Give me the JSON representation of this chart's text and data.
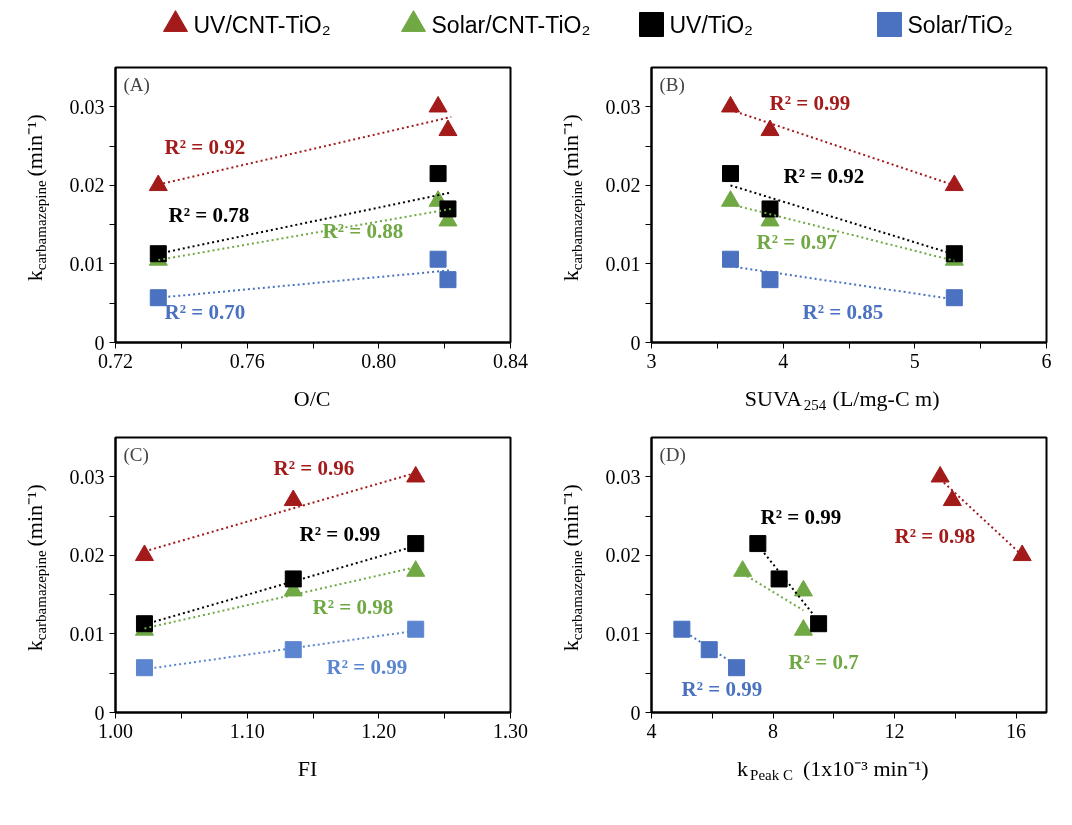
{
  "chart_data": [
    {
      "type": "scatter",
      "title": "(A)",
      "xlabel": "O/C",
      "ylabel": "k$_{carbamazepine}$ (min⁻¹)",
      "legend": "top",
      "grid": false,
      "xlim": [
        0.72,
        0.84
      ],
      "xticks": [
        0.72,
        {
          "value": 0.74,
          "label": null
        },
        0.76,
        {
          "value": 0.78,
          "label": null
        },
        {
          "value": 0.8,
          "label": "0.80"
        },
        {
          "value": 0.82,
          "label": null
        },
        0.84
      ],
      "ylim": [
        0,
        0.035
      ],
      "yticks": [
        0,
        {
          "value": 0.005,
          "label": null
        },
        0.01,
        {
          "value": 0.015,
          "label": null
        },
        0.02,
        {
          "value": 0.025,
          "label": null
        },
        0.03
      ],
      "x": [
        0.818,
        0.821,
        0.733
      ],
      "series": [
        {
          "name": "UV/CNT-TiO₂",
          "type": "scatter",
          "marker": "triangle",
          "color": "#a31a1a",
          "values": [
            0.03,
            0.027,
            0.02
          ]
        },
        {
          "name": "Solar/CNT-TiO₂",
          "type": "scatter",
          "marker": "triangle",
          "color": "#70a844",
          "values": [
            0.018,
            0.0155,
            0.0105
          ]
        },
        {
          "name": "UV/TiO₂",
          "type": "scatter",
          "marker": "square",
          "color": "#000000",
          "values": [
            0.0215,
            0.017,
            0.0113
          ]
        },
        {
          "name": "Solar/TiO₂",
          "type": "scatter",
          "marker": "square",
          "color": "#4a72c0",
          "values": [
            0.0106,
            0.008,
            0.0057
          ]
        },
        {
          "type": "line",
          "line_style": "dotted",
          "marker": "none",
          "color": "#a31a1a",
          "x": [
            0.733,
            0.822
          ],
          "values": [
            0.0201,
            0.0287
          ]
        },
        {
          "type": "line",
          "line_style": "dotted",
          "marker": "none",
          "color": "#70a844",
          "x": [
            0.733,
            0.822
          ],
          "values": [
            0.0105,
            0.017
          ]
        },
        {
          "type": "line",
          "line_style": "dotted",
          "marker": "none",
          "color": "#000000",
          "x": [
            0.733,
            0.822
          ],
          "values": [
            0.0113,
            0.0191
          ]
        },
        {
          "type": "line",
          "line_style": "dotted",
          "marker": "none",
          "color": "#4a72c0",
          "x": [
            0.733,
            0.822
          ],
          "values": [
            0.0057,
            0.0092
          ]
        }
      ],
      "annotations": [
        "R² = 0.92",
        "R² = 0.88",
        "R² = 0.78",
        "R² = 0.70"
      ]
    },
    {
      "type": "scatter",
      "title": "(B)",
      "xlabel": "SUVA$_{254}$ (L/mg-C m)",
      "ylabel": "k$_{carbamazepine}$ (min⁻¹)",
      "grid": false,
      "xlim": [
        3,
        6
      ],
      "xticks": [
        3,
        {
          "value": 3.5,
          "label": null
        },
        4,
        {
          "value": 4.5,
          "label": null
        },
        5,
        {
          "value": 5.5,
          "label": null
        },
        6
      ],
      "ylim": [
        0,
        0.035
      ],
      "yticks": [
        0,
        {
          "value": 0.005,
          "label": null
        },
        0.01,
        {
          "value": 0.015,
          "label": null
        },
        0.02,
        {
          "value": 0.025,
          "label": null
        },
        0.03
      ],
      "x": [
        3.6,
        3.9,
        5.3
      ],
      "series": [
        {
          "type": "scatter",
          "marker": "triangle",
          "color": "#a31a1a",
          "values": [
            0.03,
            0.027,
            0.02
          ]
        },
        {
          "type": "scatter",
          "marker": "triangle",
          "color": "#70a844",
          "values": [
            0.018,
            0.0155,
            0.0105
          ]
        },
        {
          "type": "scatter",
          "marker": "square",
          "color": "#000000",
          "values": [
            0.0215,
            0.017,
            0.0113
          ]
        },
        {
          "type": "scatter",
          "marker": "square",
          "color": "#4a72c0",
          "values": [
            0.0106,
            0.008,
            0.0057
          ]
        },
        {
          "type": "line",
          "line_style": "dotted",
          "marker": "none",
          "color": "#a31a1a",
          "x": [
            3.6,
            5.3
          ],
          "values": [
            0.0296,
            0.02
          ]
        },
        {
          "type": "line",
          "line_style": "dotted",
          "marker": "none",
          "color": "#70a844",
          "x": [
            3.6,
            5.3
          ],
          "values": [
            0.0176,
            0.0104
          ]
        },
        {
          "type": "line",
          "line_style": "dotted",
          "marker": "none",
          "color": "#000000",
          "x": [
            3.6,
            5.3
          ],
          "values": [
            0.02,
            0.0112
          ]
        },
        {
          "type": "line",
          "line_style": "dotted",
          "marker": "none",
          "color": "#4a72c0",
          "x": [
            3.6,
            5.3
          ],
          "values": [
            0.0097,
            0.0055
          ]
        }
      ],
      "annotations": [
        "R² = 0.99",
        "R² = 0.97",
        "R² = 0.92",
        "R² = 0.85"
      ]
    },
    {
      "type": "scatter",
      "title": "(C)",
      "xlabel": "FI",
      "ylabel": "k$_{carbamazepine}$ (min⁻¹)",
      "grid": false,
      "xlim": [
        1.0,
        1.3
      ],
      "xticks": [
        {
          "value": 1.0,
          "label": "1.00"
        },
        {
          "value": 1.05,
          "label": null
        },
        {
          "value": 1.1,
          "label": "1.10"
        },
        {
          "value": 1.15,
          "label": null
        },
        {
          "value": 1.2,
          "label": "1.20"
        },
        {
          "value": 1.25,
          "label": null
        },
        {
          "value": 1.3,
          "label": "1.30"
        }
      ],
      "ylim": [
        0,
        0.035
      ],
      "yticks": [
        0,
        {
          "value": 0.005,
          "label": null
        },
        0.01,
        {
          "value": 0.015,
          "label": null
        },
        0.02,
        {
          "value": 0.025,
          "label": null
        },
        0.03
      ],
      "x": [
        1.228,
        1.135,
        1.022
      ],
      "series": [
        {
          "type": "scatter",
          "marker": "triangle",
          "color": "#a31a1a",
          "values": [
            0.03,
            0.027,
            0.02
          ]
        },
        {
          "type": "scatter",
          "marker": "triangle",
          "color": "#70a844",
          "values": [
            0.018,
            0.0155,
            0.0105
          ]
        },
        {
          "type": "scatter",
          "marker": "square",
          "color": "#000000",
          "values": [
            0.0215,
            0.017,
            0.0113
          ]
        },
        {
          "type": "scatter",
          "marker": "square",
          "color": "#5b85d0",
          "values": [
            0.0106,
            0.008,
            0.0057
          ]
        },
        {
          "type": "line",
          "line_style": "dotted",
          "marker": "none",
          "color": "#a31a1a",
          "x": [
            1.022,
            1.228
          ],
          "values": [
            0.0205,
            0.0305
          ]
        },
        {
          "type": "line",
          "line_style": "dotted",
          "marker": "none",
          "color": "#70a844",
          "x": [
            1.022,
            1.228
          ],
          "values": [
            0.0107,
            0.0185
          ]
        },
        {
          "type": "line",
          "line_style": "dotted",
          "marker": "none",
          "color": "#000000",
          "x": [
            1.022,
            1.228
          ],
          "values": [
            0.0112,
            0.0212
          ]
        },
        {
          "type": "line",
          "line_style": "dotted",
          "marker": "none",
          "color": "#5b85d0",
          "x": [
            1.022,
            1.228
          ],
          "values": [
            0.0055,
            0.0104
          ]
        }
      ],
      "annotations": [
        "R² = 0.96",
        "R² = 0.98",
        "R² = 0.99",
        "R² = 0.99"
      ]
    },
    {
      "type": "scatter",
      "title": "(D)",
      "xlabel": "k$_{Peak C}$ (1x10⁻³ min⁻¹)",
      "ylabel": "k$_{carbamazepine}$ (min⁻¹)",
      "grid": false,
      "xlim": [
        4,
        17
      ],
      "xticks": [
        4,
        {
          "value": 6,
          "label": null
        },
        8,
        {
          "value": 10,
          "label": null
        },
        12,
        {
          "value": 14,
          "label": null
        },
        16
      ],
      "ylim": [
        0,
        0.035
      ],
      "yticks": [
        0,
        {
          "value": 0.005,
          "label": null
        },
        0.01,
        {
          "value": 0.015,
          "label": null
        },
        0.02,
        {
          "value": 0.025,
          "label": null
        },
        0.03
      ],
      "series": [
        {
          "type": "scatter",
          "marker": "triangle",
          "color": "#a31a1a",
          "x": [
            13.5,
            13.9,
            16.2
          ],
          "values": [
            0.03,
            0.027,
            0.02
          ]
        },
        {
          "type": "scatter",
          "marker": "triangle",
          "color": "#70a844",
          "x": [
            7.0,
            9.0,
            9.0
          ],
          "values": [
            0.018,
            0.0155,
            0.0105
          ]
        },
        {
          "type": "scatter",
          "marker": "square",
          "color": "#000000",
          "x": [
            7.5,
            8.2,
            9.5
          ],
          "values": [
            0.0215,
            0.017,
            0.0113
          ]
        },
        {
          "type": "scatter",
          "marker": "square",
          "color": "#4a72c0",
          "x": [
            5.0,
            5.9,
            6.8
          ],
          "values": [
            0.0106,
            0.008,
            0.0057
          ]
        },
        {
          "type": "line",
          "line_style": "dotted",
          "marker": "none",
          "color": "#a31a1a",
          "x": [
            13.5,
            16.2
          ],
          "values": [
            0.0297,
            0.02
          ]
        },
        {
          "type": "line",
          "line_style": "dotted",
          "marker": "none",
          "color": "#70a844",
          "x": [
            7.0,
            9.0
          ],
          "values": [
            0.0177,
            0.013
          ]
        },
        {
          "type": "line",
          "line_style": "dotted",
          "marker": "none",
          "color": "#000000",
          "x": [
            7.5,
            9.3
          ],
          "values": [
            0.0213,
            0.0126
          ]
        },
        {
          "type": "line",
          "line_style": "dotted",
          "marker": "none",
          "color": "#4a72c0",
          "x": [
            5.0,
            6.8
          ],
          "values": [
            0.0105,
            0.006
          ]
        }
      ],
      "annotations": [
        "R² = 0.98",
        "R² = 0.7",
        "R² = 0.99",
        "R² = 0.99"
      ]
    }
  ]
}
